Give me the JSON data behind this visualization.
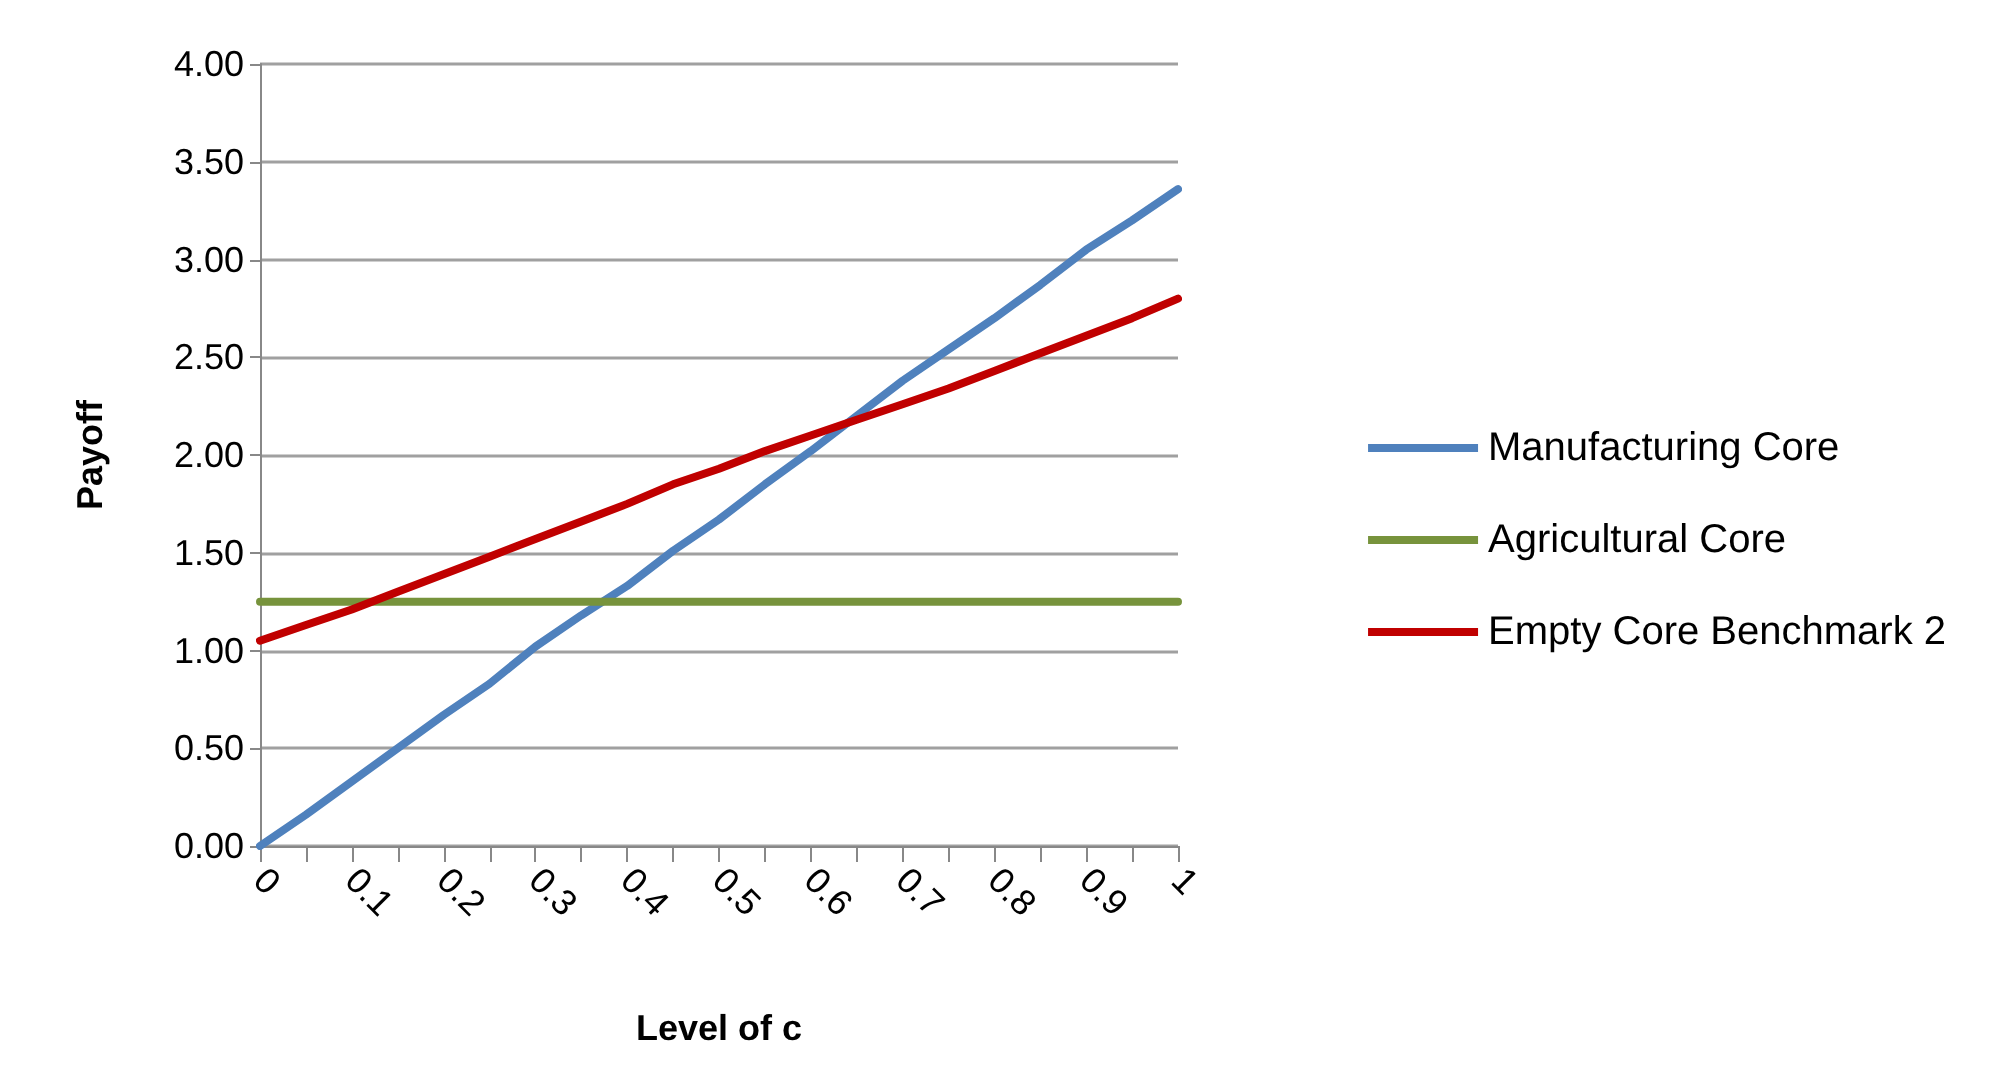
{
  "chart_data": {
    "type": "line",
    "xlabel": "Level of c",
    "ylabel": "Payoff",
    "x": [
      0,
      0.05,
      0.1,
      0.15,
      0.2,
      0.25,
      0.3,
      0.35,
      0.4,
      0.45,
      0.5,
      0.55,
      0.6,
      0.65,
      0.7,
      0.75,
      0.8,
      0.85,
      0.9,
      0.95,
      1
    ],
    "series": [
      {
        "name": "Manufacturing Core",
        "color": "#4f81bd",
        "values": [
          0,
          0.16,
          0.33,
          0.5,
          0.67,
          0.83,
          1.02,
          1.18,
          1.33,
          1.51,
          1.67,
          1.85,
          2.02,
          2.2,
          2.38,
          2.54,
          2.7,
          2.87,
          3.05,
          3.2,
          3.36
        ]
      },
      {
        "name": "Agricultural Core",
        "color": "#77933c",
        "values": [
          1.25,
          1.25,
          1.25,
          1.25,
          1.25,
          1.25,
          1.25,
          1.25,
          1.25,
          1.25,
          1.25,
          1.25,
          1.25,
          1.25,
          1.25,
          1.25,
          1.25,
          1.25,
          1.25,
          1.25,
          1.25
        ]
      },
      {
        "name": "Empty Core Benchmark 2",
        "color": "#c00000",
        "values": [
          1.05,
          1.13,
          1.21,
          1.3,
          1.39,
          1.48,
          1.57,
          1.66,
          1.75,
          1.85,
          1.93,
          2.02,
          2.1,
          2.18,
          2.26,
          2.34,
          2.43,
          2.52,
          2.61,
          2.7,
          2.8
        ]
      }
    ],
    "xlim": [
      0,
      1
    ],
    "xticks": [
      0,
      {
        "value": 0.05,
        "label": null
      },
      0.1,
      {
        "value": 0.15,
        "label": null
      },
      0.2,
      {
        "value": 0.25,
        "label": null
      },
      0.3,
      {
        "value": 0.35,
        "label": null
      },
      0.4,
      {
        "value": 0.45,
        "label": null
      },
      0.5,
      {
        "value": 0.55,
        "label": null
      },
      0.6,
      {
        "value": 0.65,
        "label": null
      },
      0.7,
      {
        "value": 0.75,
        "label": null
      },
      0.8,
      {
        "value": 0.85,
        "label": null
      },
      0.9,
      {
        "value": 0.95,
        "label": null
      },
      1
    ],
    "ylim": [
      0,
      4
    ],
    "yticks": [
      {
        "value": 0,
        "label": "0.00"
      },
      {
        "value": 0.5,
        "label": "0.50"
      },
      {
        "value": 1,
        "label": "1.00"
      },
      {
        "value": 1.5,
        "label": "1.50"
      },
      {
        "value": 2,
        "label": "2.00"
      },
      {
        "value": 2.5,
        "label": "2.50"
      },
      {
        "value": 3,
        "label": "3.00"
      },
      {
        "value": 3.5,
        "label": "3.50"
      },
      {
        "value": 4,
        "label": "4.00"
      }
    ],
    "grid": "y",
    "legend": "right",
    "marker": "none",
    "line_style": "solid"
  }
}
